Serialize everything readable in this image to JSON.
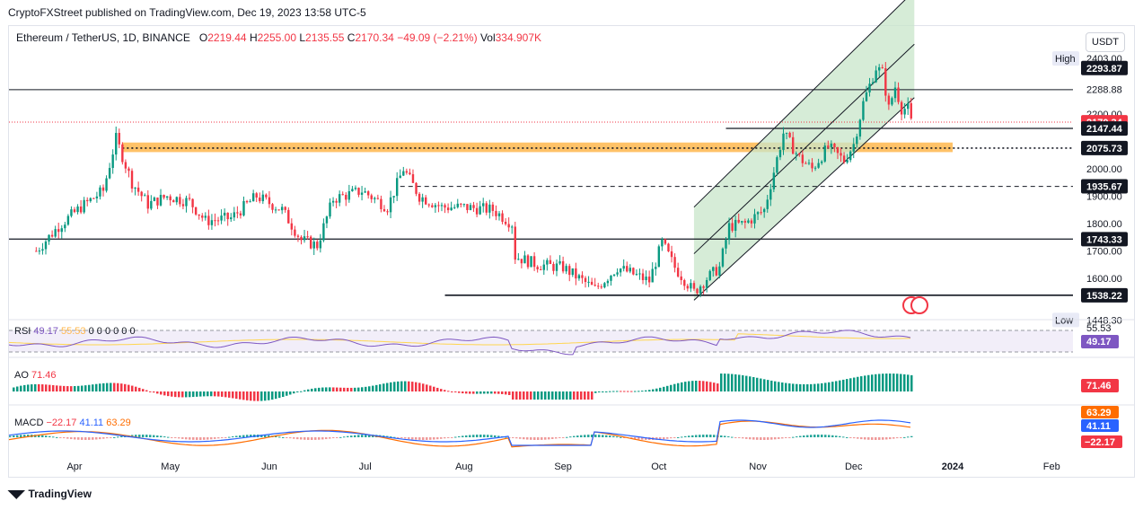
{
  "header": {
    "publisher": "CryptoFXStreet published on TradingView.com, Dec 19, 2023 13:58 UTC-5"
  },
  "legend": {
    "symbol": "Ethereum / TetherUS, 1D, BINANCE",
    "o_label": "O",
    "o": "2219.44",
    "h_label": "H",
    "h": "2255.00",
    "l_label": "L",
    "l": "2135.55",
    "c_label": "C",
    "c": "2170.34",
    "change": "−49.09 (−2.21%)",
    "vol_label": "Vol",
    "vol": "334.907K"
  },
  "unit": "USDT",
  "rsi": {
    "label": "RSI",
    "v1": "49.17",
    "v2": "55.53",
    "extra": "0 0 0 0 0 0"
  },
  "ao": {
    "label": "AO",
    "value": "71.46"
  },
  "macd": {
    "label": "MACD",
    "hist": "−22.17",
    "macd": "41.11",
    "signal": "63.29"
  },
  "footer": {
    "brand": "TradingView",
    "logo_icon": "tradingview-logo-icon"
  },
  "colors": {
    "up": "#089981",
    "down": "#f23645",
    "zone": "#ffb74d",
    "channel": "#c8e6c9",
    "rsi": "#7e57c2",
    "macd": "#2962ff",
    "signal": "#ff6d00"
  },
  "chart_data": {
    "type": "candlestick",
    "title": "Ethereum / TetherUS, 1D, BINANCE",
    "x_ticks": [
      "Apr",
      "May",
      "Jun",
      "Jul",
      "Aug",
      "Sep",
      "Oct",
      "Nov",
      "Dec",
      "2024",
      "Feb"
    ],
    "y_ticks": [
      "2200.00",
      "2000.00",
      "1900.00",
      "1800.00",
      "1700.00",
      "1600.00"
    ],
    "ylim": [
      1420,
      2460
    ],
    "price_labels": [
      {
        "text": "2403.00",
        "y": 2403,
        "kind": "high"
      },
      {
        "text": "High",
        "y": 2403,
        "kind": "tag"
      },
      {
        "text": "2293.87",
        "y": 2368,
        "kind": "black"
      },
      {
        "text": "2288.88",
        "y": 2290,
        "kind": "plain"
      },
      {
        "text": "2170.34",
        "y": 2170,
        "kind": "red"
      },
      {
        "text": "2147.44",
        "y": 2147,
        "kind": "black"
      },
      {
        "text": "2075.73",
        "y": 2076,
        "kind": "black"
      },
      {
        "text": "1935.67",
        "y": 1936,
        "kind": "black"
      },
      {
        "text": "1743.33",
        "y": 1743,
        "kind": "black"
      },
      {
        "text": "1538.22",
        "y": 1538,
        "kind": "black"
      },
      {
        "text": "1448.30",
        "y": 1448,
        "kind": "plain"
      },
      {
        "text": "Low",
        "y": 1448,
        "kind": "tag"
      }
    ],
    "key_levels": [
      2288.88,
      2147.44,
      2075.73,
      1935.67,
      1743.33,
      1538.22
    ],
    "supply_zone": [
      2061,
      2096
    ],
    "current_price": 2170.34,
    "close_path": [
      [
        "2023-03-20",
        1700
      ],
      [
        "2023-03-27",
        1790
      ],
      [
        "2023-04-03",
        1860
      ],
      [
        "2023-04-10",
        1920
      ],
      [
        "2023-04-14",
        2110
      ],
      [
        "2023-04-19",
        1950
      ],
      [
        "2023-04-24",
        1870
      ],
      [
        "2023-04-30",
        1900
      ],
      [
        "2023-05-07",
        1880
      ],
      [
        "2023-05-12",
        1810
      ],
      [
        "2023-05-20",
        1820
      ],
      [
        "2023-05-28",
        1900
      ],
      [
        "2023-06-05",
        1850
      ],
      [
        "2023-06-11",
        1740
      ],
      [
        "2023-06-16",
        1720
      ],
      [
        "2023-06-21",
        1890
      ],
      [
        "2023-06-30",
        1920
      ],
      [
        "2023-07-08",
        1860
      ],
      [
        "2023-07-13",
        2000
      ],
      [
        "2023-07-18",
        1900
      ],
      [
        "2023-07-25",
        1860
      ],
      [
        "2023-08-01",
        1860
      ],
      [
        "2023-08-10",
        1850
      ],
      [
        "2023-08-16",
        1800
      ],
      [
        "2023-08-17",
        1680
      ],
      [
        "2023-08-24",
        1650
      ],
      [
        "2023-09-01",
        1640
      ],
      [
        "2023-09-11",
        1560
      ],
      [
        "2023-09-18",
        1640
      ],
      [
        "2023-09-28",
        1590
      ],
      [
        "2023-10-02",
        1730
      ],
      [
        "2023-10-06",
        1640
      ],
      [
        "2023-10-12",
        1550
      ],
      [
        "2023-10-16",
        1600
      ],
      [
        "2023-10-20",
        1640
      ],
      [
        "2023-10-23",
        1790
      ],
      [
        "2023-10-28",
        1800
      ],
      [
        "2023-11-03",
        1850
      ],
      [
        "2023-11-09",
        2130
      ],
      [
        "2023-11-14",
        2040
      ],
      [
        "2023-11-18",
        2000
      ],
      [
        "2023-11-23",
        2080
      ],
      [
        "2023-11-28",
        2030
      ],
      [
        "2023-12-01",
        2090
      ],
      [
        "2023-12-04",
        2240
      ],
      [
        "2023-12-08",
        2370
      ],
      [
        "2023-12-10",
        2350
      ],
      [
        "2023-12-12",
        2220
      ],
      [
        "2023-12-14",
        2300
      ],
      [
        "2023-12-16",
        2220
      ],
      [
        "2023-12-18",
        2220
      ],
      [
        "2023-12-19",
        2170
      ]
    ],
    "ascending_channel": {
      "lower": [
        [
          "2023-10-12",
          1520
        ],
        [
          "2023-12-20",
          2260
        ]
      ],
      "upper": [
        [
          "2023-10-12",
          1860
        ],
        [
          "2023-12-20",
          2650
        ]
      ],
      "mid": [
        [
          "2023-10-12",
          1690
        ],
        [
          "2023-12-20",
          2455
        ]
      ]
    }
  }
}
